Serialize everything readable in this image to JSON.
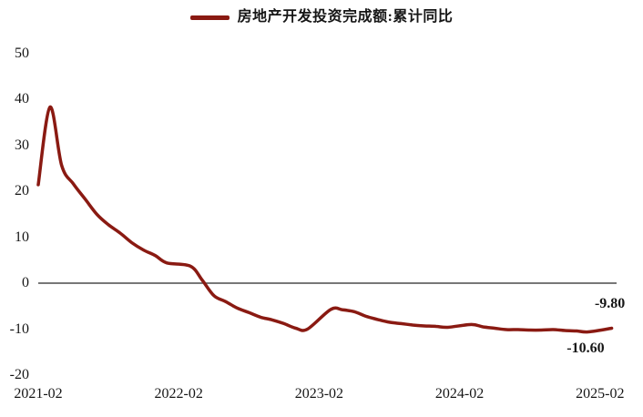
{
  "colors": {
    "line": "#8A1A12",
    "zero_axis": "#4a4a4a",
    "text": "#161616",
    "background": "#ffffff"
  },
  "chart_data": {
    "type": "line",
    "title": "",
    "legend": "房地产开发投资完成额:累计同比",
    "legend_position": "top-center",
    "grid": false,
    "zero_line": true,
    "ylim": [
      -20,
      50
    ],
    "y_ticks": [
      50,
      40,
      30,
      20,
      10,
      0,
      -10,
      -20
    ],
    "x_ticks": [
      "2021-02",
      "2022-02",
      "2023-02",
      "2024-02",
      "2025-02"
    ],
    "series": [
      {
        "name": "房地产开发投资完成额:累计同比",
        "color": "#8A1A12",
        "points": [
          {
            "x": "2021-01",
            "y": 21.4
          },
          {
            "x": "2021-02",
            "y": 38.3
          },
          {
            "x": "2021-03",
            "y": 25.6
          },
          {
            "x": "2021-04",
            "y": 21.6
          },
          {
            "x": "2021-05",
            "y": 18.3
          },
          {
            "x": "2021-06",
            "y": 15.0
          },
          {
            "x": "2021-07",
            "y": 12.7
          },
          {
            "x": "2021-08",
            "y": 10.9
          },
          {
            "x": "2021-09",
            "y": 8.8
          },
          {
            "x": "2021-10",
            "y": 7.2
          },
          {
            "x": "2021-11",
            "y": 6.0
          },
          {
            "x": "2021-12",
            "y": 4.4
          },
          {
            "x": "2022-02",
            "y": 3.7
          },
          {
            "x": "2022-03",
            "y": 0.7
          },
          {
            "x": "2022-04",
            "y": -2.7
          },
          {
            "x": "2022-05",
            "y": -4.0
          },
          {
            "x": "2022-06",
            "y": -5.4
          },
          {
            "x": "2022-07",
            "y": -6.4
          },
          {
            "x": "2022-08",
            "y": -7.4
          },
          {
            "x": "2022-09",
            "y": -8.0
          },
          {
            "x": "2022-10",
            "y": -8.8
          },
          {
            "x": "2022-11",
            "y": -9.8
          },
          {
            "x": "2022-12",
            "y": -10.0
          },
          {
            "x": "2023-02",
            "y": -5.7
          },
          {
            "x": "2023-03",
            "y": -5.8
          },
          {
            "x": "2023-04",
            "y": -6.2
          },
          {
            "x": "2023-05",
            "y": -7.2
          },
          {
            "x": "2023-06",
            "y": -7.9
          },
          {
            "x": "2023-07",
            "y": -8.5
          },
          {
            "x": "2023-08",
            "y": -8.8
          },
          {
            "x": "2023-09",
            "y": -9.1
          },
          {
            "x": "2023-10",
            "y": -9.3
          },
          {
            "x": "2023-11",
            "y": -9.4
          },
          {
            "x": "2023-12",
            "y": -9.6
          },
          {
            "x": "2024-02",
            "y": -9.0
          },
          {
            "x": "2024-03",
            "y": -9.5
          },
          {
            "x": "2024-04",
            "y": -9.8
          },
          {
            "x": "2024-05",
            "y": -10.1
          },
          {
            "x": "2024-06",
            "y": -10.1
          },
          {
            "x": "2024-07",
            "y": -10.2
          },
          {
            "x": "2024-08",
            "y": -10.2
          },
          {
            "x": "2024-09",
            "y": -10.1
          },
          {
            "x": "2024-10",
            "y": -10.3
          },
          {
            "x": "2024-11",
            "y": -10.4
          },
          {
            "x": "2024-12",
            "y": -10.6
          },
          {
            "x": "2025-02",
            "y": -9.8
          }
        ]
      }
    ],
    "annotations": [
      {
        "text": "-9.80",
        "for": "2025-02",
        "placement": "above"
      },
      {
        "text": "-10.60",
        "for": "2024-12",
        "placement": "below"
      }
    ]
  }
}
